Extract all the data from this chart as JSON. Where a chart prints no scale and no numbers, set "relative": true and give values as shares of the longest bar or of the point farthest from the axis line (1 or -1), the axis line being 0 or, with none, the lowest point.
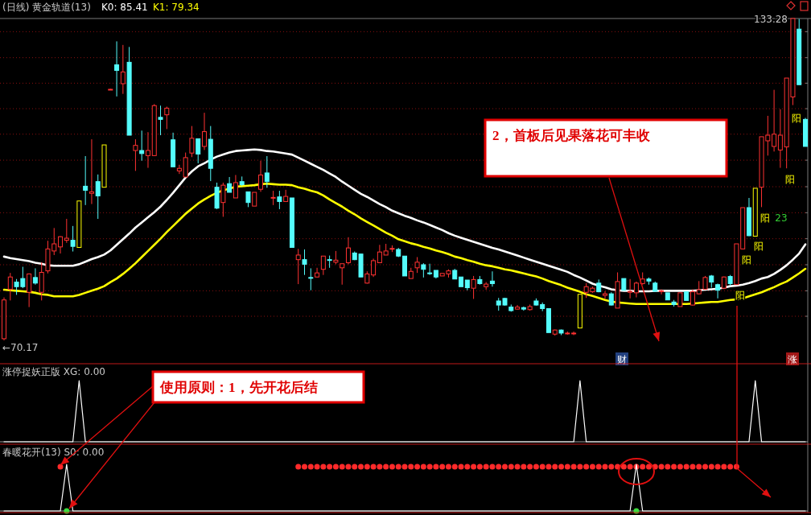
{
  "chart_data": [
    {
      "type": "candlestick",
      "title": "(日线) 黄金轨道(13)",
      "categories": [
        null,
        null,
        null,
        null,
        null,
        null,
        null,
        null,
        null,
        null,
        null,
        null,
        null,
        null,
        null,
        null,
        null,
        null,
        null,
        null,
        null,
        null,
        null,
        null,
        null,
        null,
        null,
        null,
        null,
        null,
        null,
        null,
        null,
        null,
        null,
        null,
        null,
        null,
        null,
        null,
        null,
        null,
        null,
        null,
        null,
        null,
        null,
        null,
        null,
        null,
        null,
        null,
        null,
        null,
        null,
        null,
        null,
        null,
        null,
        null,
        null,
        null,
        null,
        null,
        null,
        null,
        null,
        null,
        null,
        null,
        null,
        null,
        null,
        null,
        null,
        null,
        null,
        null,
        null,
        null,
        null,
        null,
        null,
        null,
        null,
        null,
        null,
        null,
        null,
        null,
        null,
        null,
        null,
        null,
        null,
        null,
        null,
        null,
        null,
        null,
        null,
        null,
        null,
        null,
        null,
        null,
        null,
        null,
        null,
        null,
        null,
        null,
        null,
        null,
        null,
        null,
        null,
        null,
        null,
        null,
        null,
        null,
        null,
        null,
        null,
        null,
        null,
        null,
        null
      ],
      "ohlc": [
        [
          70.5,
          78.6,
          70.17,
          78.1
        ],
        [
          80.2,
          83.4,
          78.0,
          82.6
        ],
        [
          81.6,
          82.2,
          79.1,
          80.7
        ],
        [
          82.3,
          84.6,
          80.4,
          80.7
        ],
        [
          79.6,
          83.3,
          76.7,
          83.2
        ],
        [
          82.5,
          84.3,
          81.1,
          81.4
        ],
        [
          79.6,
          85.5,
          78.0,
          83.5
        ],
        [
          83.8,
          89.7,
          83.3,
          88.1
        ],
        [
          87.7,
          92.2,
          86.9,
          89.1
        ],
        [
          88.5,
          90.6,
          87.2,
          90.5
        ],
        [
          89.8,
          94.0,
          89.3,
          90.2
        ],
        [
          89.8,
          92.6,
          87.6,
          88.6
        ],
        [
          88.4,
          97.5,
          88.4,
          97.5
        ],
        [
          100.4,
          106.3,
          96.7,
          99.6
        ],
        [
          99.0,
          109.6,
          96.9,
          99.3
        ],
        [
          101.3,
          102.7,
          94.0,
          98.5
        ],
        [
          100.2,
          108.5,
          100.2,
          108.5
        ],
        [
          119.3,
          119.5,
          119.3,
          119.4
        ],
        [
          124.2,
          128.8,
          118.0,
          123.1
        ],
        [
          120.5,
          128.1,
          118.5,
          122.8
        ],
        [
          124.7,
          127.7,
          110.4,
          110.4
        ],
        [
          107.4,
          109.6,
          103.4,
          108.4
        ],
        [
          107.4,
          111.3,
          105.4,
          106.8
        ],
        [
          106.4,
          111.0,
          104.0,
          107.4
        ],
        [
          106.4,
          116.5,
          106.3,
          116.2
        ],
        [
          113.9,
          116.2,
          110.4,
          113.5
        ],
        [
          114.4,
          116.0,
          111.6,
          115.7
        ],
        [
          109.5,
          110.9,
          104.2,
          104.2
        ],
        [
          103.4,
          104.6,
          102.8,
          103.9
        ],
        [
          102.2,
          107.0,
          102.2,
          106.0
        ],
        [
          106.9,
          112.2,
          106.1,
          109.8
        ],
        [
          109.7,
          109.7,
          104.9,
          106.7
        ],
        [
          108.2,
          114.8,
          107.5,
          111.1
        ],
        [
          109.6,
          112.2,
          101.4,
          103.9
        ],
        [
          100.2,
          101.1,
          95.9,
          96.1
        ],
        [
          97.2,
          101.1,
          94.4,
          100.6
        ],
        [
          100.9,
          102.2,
          99.2,
          99.2
        ],
        [
          98.1,
          102.6,
          98.1,
          101.1
        ],
        [
          101.3,
          102.3,
          100.4,
          100.7
        ],
        [
          99.3,
          99.3,
          96.3,
          97.2
        ],
        [
          96.5,
          99.2,
          96.5,
          99.2
        ],
        [
          99.8,
          105.4,
          99.3,
          102.6
        ],
        [
          103.0,
          106.3,
          100.1,
          101.3
        ],
        [
          98.1,
          99.5,
          96.7,
          98.2
        ],
        [
          98.3,
          99.5,
          95.9,
          97.4
        ],
        [
          97.4,
          99.7,
          97.4,
          98.4
        ],
        [
          98.1,
          98.1,
          88.4,
          88.4
        ],
        [
          86.0,
          88.1,
          81.2,
          86.9
        ],
        [
          86.0,
          88.0,
          83.0,
          85.1
        ],
        [
          82.5,
          84.3,
          80.0,
          82.4
        ],
        [
          82.6,
          84.4,
          82.5,
          83.4
        ],
        [
          84.1,
          86.7,
          83.0,
          86.7
        ],
        [
          86.0,
          86.8,
          84.4,
          85.9
        ],
        [
          85.5,
          87.7,
          85.1,
          85.9
        ],
        [
          84.4,
          85.2,
          81.1,
          85.2
        ],
        [
          85.4,
          90.4,
          85.1,
          88.3
        ],
        [
          87.3,
          87.6,
          85.9,
          86.0
        ],
        [
          87.1,
          87.1,
          82.6,
          82.6
        ],
        [
          81.4,
          83.7,
          81.3,
          83.2
        ],
        [
          83.0,
          86.2,
          82.6,
          85.8
        ],
        [
          85.4,
          88.9,
          85.4,
          87.5
        ],
        [
          86.9,
          89.1,
          86.9,
          87.7
        ],
        [
          88.1,
          88.8,
          87.5,
          88.2
        ],
        [
          88.0,
          88.3,
          86.5,
          86.7
        ],
        [
          86.7,
          86.7,
          82.8,
          82.8
        ],
        [
          82.3,
          84.4,
          82.3,
          83.7
        ],
        [
          84.4,
          86.5,
          83.4,
          85.5
        ],
        [
          85.0,
          85.3,
          82.5,
          84.1
        ],
        [
          83.4,
          85.2,
          83.0,
          83.3
        ],
        [
          83.9,
          83.9,
          82.3,
          82.6
        ],
        [
          82.8,
          83.3,
          82.8,
          83.3
        ],
        [
          83.2,
          84.1,
          82.5,
          83.8
        ],
        [
          83.9,
          84.2,
          82.2,
          82.2
        ],
        [
          82.6,
          82.6,
          80.7,
          80.7
        ],
        [
          82.0,
          82.0,
          80.0,
          80.5
        ],
        [
          80.4,
          82.8,
          78.3,
          82.1
        ],
        [
          82.1,
          82.8,
          81.1,
          81.3
        ],
        [
          80.7,
          81.6,
          80.1,
          81.2
        ],
        [
          81.8,
          83.7,
          80.7,
          81.3
        ],
        [
          77.9,
          78.5,
          76.0,
          77.1
        ],
        [
          78.4,
          78.5,
          77.0,
          77.1
        ],
        [
          76.7,
          77.2,
          75.8,
          76.0
        ],
        [
          76.3,
          77.1,
          76.2,
          76.7
        ],
        [
          76.6,
          76.8,
          76.0,
          76.3
        ],
        [
          76.2,
          77.2,
          76.0,
          76.8
        ],
        [
          77.9,
          78.4,
          77.0,
          77.1
        ],
        [
          77.2,
          77.6,
          75.9,
          76.4
        ],
        [
          76.4,
          76.4,
          71.7,
          71.7
        ],
        [
          71.4,
          72.3,
          71.1,
          72.2
        ],
        [
          72.2,
          72.3,
          71.2,
          71.6
        ],
        [
          71.5,
          71.9,
          71.3,
          71.6
        ],
        [
          71.5,
          71.9,
          71.2,
          71.6
        ],
        [
          72.6,
          79.2,
          72.6,
          79.2
        ],
        [
          79.6,
          81.4,
          78.5,
          80.7
        ],
        [
          79.7,
          80.7,
          79.5,
          80.4
        ],
        [
          81.4,
          82.1,
          79.6,
          79.7
        ],
        [
          79.0,
          79.8,
          78.3,
          79.3
        ],
        [
          79.3,
          79.6,
          77.0,
          77.1
        ],
        [
          76.5,
          83.5,
          76.5,
          81.7
        ],
        [
          82.3,
          82.3,
          80.0,
          80.0
        ],
        [
          79.6,
          82.2,
          78.4,
          79.8
        ],
        [
          79.5,
          81.7,
          78.6,
          81.4
        ],
        [
          81.3,
          83.5,
          81.1,
          82.2
        ],
        [
          82.2,
          82.5,
          81.1,
          81.8
        ],
        [
          81.4,
          81.7,
          79.7,
          79.8
        ],
        [
          79.8,
          80.2,
          79.2,
          79.9
        ],
        [
          79.5,
          79.5,
          78.1,
          78.1
        ],
        [
          77.7,
          78.1,
          76.8,
          77.2
        ],
        [
          76.8,
          79.5,
          76.8,
          79.5
        ],
        [
          79.7,
          79.7,
          78.0,
          78.0
        ],
        [
          77.1,
          80.2,
          77.0,
          79.7
        ],
        [
          79.3,
          81.8,
          79.2,
          80.1
        ],
        [
          80.2,
          82.8,
          80.1,
          82.5
        ],
        [
          82.8,
          83.0,
          80.5,
          81.6
        ],
        [
          81.1,
          81.3,
          78.4,
          80.0
        ],
        [
          80.4,
          82.7,
          80.2,
          82.6
        ],
        [
          82.7,
          83.0,
          80.9,
          81.3
        ],
        [
          81.1,
          89.1,
          81.1,
          89.1
        ],
        [
          88.1,
          96.2,
          88.0,
          96.2
        ],
        [
          96.2,
          98.1,
          90.6,
          90.7
        ],
        [
          90.6,
          100.0,
          90.6,
          100.0
        ],
        [
          100.2,
          110.1,
          96.3,
          110.1
        ],
        [
          109.3,
          114.2,
          106.4,
          110.4
        ],
        [
          108.2,
          119.3,
          107.2,
          110.6
        ],
        [
          107.5,
          115.5,
          104.0,
          110.4
        ],
        [
          108.1,
          121.6,
          103.9,
          121.6
        ],
        [
          117.9,
          133.28,
          116.3,
          133.28
        ],
        [
          131.2,
          133.2,
          120.3,
          120.3
        ],
        [
          113.5,
          113.8,
          108.2,
          108.2
        ]
      ],
      "colors": [
        "#ff3232",
        "#ff3232",
        "#54fcfc",
        "#54fcfc",
        "#ff3232",
        "#54fcfc",
        "#ff3232",
        "#ff3232",
        "#ff3232",
        "#ff3232",
        "#ff3232",
        "#54fcfc",
        "#ffff00",
        "#54fcfc",
        "#ff3232",
        "#54fcfc",
        "#ffff00",
        "#ff3232",
        "#54fcfc",
        "#ff3232",
        "#54fcfc",
        "#ff3232",
        "#54fcfc",
        "#ff3232",
        "#ff3232",
        "#54fcfc",
        "#ff3232",
        "#54fcfc",
        "#ff3232",
        "#ff3232",
        "#ff3232",
        "#54fcfc",
        "#ff3232",
        "#54fcfc",
        "#54fcfc",
        "#ff3232",
        "#54fcfc",
        "#ff3232",
        "#54fcfc",
        "#54fcfc",
        "#ff3232",
        "#ff3232",
        "#54fcfc",
        "#ff3232",
        "#54fcfc",
        "#ff3232",
        "#54fcfc",
        "#ff3232",
        "#54fcfc",
        "#54fcfc",
        "#ff3232",
        "#ff3232",
        "#54fcfc",
        "#ff3232",
        "#ff3232",
        "#ff3232",
        "#54fcfc",
        "#54fcfc",
        "#ff3232",
        "#ff3232",
        "#ff3232",
        "#ff3232",
        "#ff3232",
        "#54fcfc",
        "#54fcfc",
        "#ff3232",
        "#ff3232",
        "#54fcfc",
        "#54fcfc",
        "#54fcfc",
        "#ff3232",
        "#ff3232",
        "#54fcfc",
        "#54fcfc",
        "#54fcfc",
        "#ff3232",
        "#54fcfc",
        "#ff3232",
        "#54fcfc",
        "#54fcfc",
        "#54fcfc",
        "#54fcfc",
        "#ff3232",
        "#54fcfc",
        "#ff3232",
        "#54fcfc",
        "#54fcfc",
        "#54fcfc",
        "#ff3232",
        "#54fcfc",
        "#ff3232",
        "#ff3232",
        "#ffff00",
        "#ff3232",
        "#ff3232",
        "#54fcfc",
        "#ff3232",
        "#54fcfc",
        "#ff3232",
        "#54fcfc",
        "#ff3232",
        "#ff3232",
        "#ff3232",
        "#54fcfc",
        "#54fcfc",
        "#ff3232",
        "#54fcfc",
        "#54fcfc",
        "#ff3232",
        "#54fcfc",
        "#ff3232",
        "#ff3232",
        "#ff3232",
        "#54fcfc",
        "#54fcfc",
        "#ff3232",
        "#54fcfc",
        "#ff3232",
        "#ff3232",
        "#54fcfc",
        "#ffff00",
        "#ff3232",
        "#ff3232",
        "#ff3232",
        "#ff3232",
        "#ff3232",
        "#ff3232",
        "#54fcfc",
        "#54fcfc"
      ],
      "series": [
        {
          "type": "line",
          "color": "#ffffff",
          "values": [
            86.6,
            86.3,
            86.1,
            85.9,
            85.7,
            85.4,
            85.2,
            84.9,
            84.8,
            84.8,
            84.8,
            84.8,
            85.1,
            85.6,
            86.1,
            86.5,
            87.0,
            87.8,
            88.9,
            90.0,
            91.1,
            92.3,
            93.3,
            94.3,
            95.3,
            96.4,
            97.7,
            99.1,
            100.6,
            102.1,
            103.3,
            104.3,
            104.9,
            105.6,
            106.2,
            106.6,
            107.0,
            107.3,
            107.4,
            107.5,
            107.6,
            107.5,
            107.3,
            107.2,
            107.0,
            106.8,
            106.6,
            106.0,
            105.4,
            104.8,
            104.2,
            103.6,
            102.9,
            102.2,
            101.3,
            100.5,
            99.7,
            98.9,
            98.3,
            97.6,
            96.9,
            96.3,
            95.6,
            95.1,
            94.6,
            94.2,
            93.7,
            93.3,
            92.8,
            92.3,
            91.8,
            91.2,
            90.7,
            90.3,
            89.9,
            89.5,
            89.1,
            88.7,
            88.3,
            88.0,
            87.6,
            87.2,
            86.8,
            86.4,
            86.0,
            85.6,
            85.2,
            84.8,
            84.4,
            84.0,
            83.6,
            83.0,
            82.5,
            81.9,
            81.3,
            80.9,
            80.6,
            80.2,
            80.0,
            79.9,
            79.9,
            79.8,
            79.8,
            79.8,
            79.9,
            79.9,
            79.9,
            79.9,
            79.9,
            79.9,
            79.9,
            80.0,
            80.1,
            80.2,
            80.3,
            80.5,
            80.8,
            80.9,
            81.1,
            81.4,
            81.8,
            82.3,
            82.6,
            83.2,
            84.0,
            84.9,
            86.0,
            87.2,
            89.0
          ]
        },
        {
          "type": "line",
          "color": "#ffff00",
          "values": [
            80.1,
            80.0,
            79.9,
            79.8,
            79.7,
            79.5,
            79.2,
            79.1,
            78.8,
            78.8,
            78.8,
            78.8,
            79.1,
            79.5,
            79.9,
            80.3,
            80.8,
            81.6,
            82.3,
            83.2,
            84.2,
            85.3,
            86.5,
            87.7,
            88.9,
            90.1,
            91.4,
            92.6,
            93.8,
            95.0,
            96.0,
            97.0,
            97.8,
            98.5,
            99.1,
            99.6,
            99.9,
            100.3,
            100.4,
            100.5,
            100.6,
            100.8,
            100.9,
            100.8,
            100.7,
            100.7,
            100.6,
            100.2,
            99.9,
            99.5,
            99.2,
            98.6,
            97.8,
            97.1,
            96.4,
            95.6,
            94.9,
            94.1,
            93.4,
            92.7,
            92.0,
            91.3,
            90.7,
            90.0,
            89.6,
            89.2,
            88.9,
            88.5,
            88.2,
            87.8,
            87.5,
            87.1,
            86.6,
            86.3,
            85.9,
            85.6,
            85.2,
            84.9,
            84.7,
            84.4,
            84.1,
            83.9,
            83.6,
            83.3,
            83.0,
            82.7,
            82.3,
            81.8,
            81.4,
            81.0,
            80.5,
            80.1,
            79.7,
            79.2,
            78.9,
            78.5,
            78.1,
            77.8,
            77.6,
            77.5,
            77.4,
            77.3,
            77.3,
            77.3,
            77.3,
            77.3,
            77.3,
            77.3,
            77.3,
            77.3,
            77.4,
            77.5,
            77.6,
            77.7,
            77.7,
            77.9,
            78.1,
            78.2,
            78.4,
            78.8,
            79.2,
            79.6,
            80.1,
            80.6,
            81.2,
            81.7,
            82.5,
            83.3,
            84.2
          ]
        }
      ],
      "yticks": [
        {
          "value": 130.7,
          "label": null
        },
        {
          "value": 125.6,
          "label": null
        },
        {
          "value": 120.6,
          "label": null
        },
        {
          "value": 115.6,
          "label": null
        },
        {
          "value": 110.6,
          "label": null
        },
        {
          "value": 105.5,
          "label": null
        },
        {
          "value": 100.3,
          "label": null
        },
        {
          "value": 95.2,
          "label": null
        },
        {
          "value": 90.1,
          "label": null
        },
        {
          "value": 85.0,
          "label": null
        },
        {
          "value": 79.9,
          "label": null
        },
        {
          "value": 74.9,
          "label": null
        }
      ],
      "grid": "y",
      "annotations": [
        "K0: 85.41",
        "K1: 79.34",
        "133.28",
        "←70.17",
        "2，首板后见果落花可丰收",
        "阳",
        "阳",
        "阳",
        "阳",
        "阳",
        "阳",
        "23",
        "财",
        "涨"
      ]
    },
    {
      "type": "line",
      "title": "涨停捉妖正版 XG: 0.00",
      "relative": true,
      "categories": [
        null,
        null,
        null,
        null,
        null,
        null,
        null,
        null,
        null,
        null,
        null,
        null,
        null,
        null,
        null,
        null,
        null,
        null,
        null,
        null,
        null,
        null,
        null,
        null,
        null,
        null,
        null,
        null,
        null,
        null,
        null,
        null,
        null,
        null,
        null,
        null,
        null,
        null,
        null,
        null,
        null,
        null,
        null,
        null,
        null,
        null,
        null,
        null,
        null,
        null,
        null,
        null,
        null,
        null,
        null,
        null,
        null,
        null,
        null,
        null,
        null,
        null,
        null,
        null,
        null,
        null,
        null,
        null,
        null,
        null,
        null,
        null,
        null,
        null,
        null,
        null,
        null,
        null,
        null,
        null,
        null,
        null,
        null,
        null,
        null,
        null,
        null,
        null,
        null,
        null,
        null,
        null,
        null,
        null,
        null,
        null,
        null,
        null,
        null,
        null,
        null,
        null,
        null,
        null,
        null,
        null,
        null,
        null,
        null,
        null,
        null,
        null,
        null,
        null,
        null,
        null,
        null,
        null,
        null,
        null,
        null,
        null,
        null,
        null,
        null,
        null,
        null,
        null,
        null
      ],
      "series": [
        {
          "type": "line",
          "color": "#ffffff",
          "values": [
            0,
            0,
            0,
            0,
            0,
            0,
            0,
            0,
            0,
            0,
            0,
            0,
            1,
            0,
            0,
            0,
            0,
            0,
            0,
            0,
            0,
            0,
            0,
            0,
            0,
            0,
            0,
            0,
            0,
            0,
            0,
            0,
            0,
            0,
            0,
            0,
            0,
            0,
            0,
            0,
            0,
            0,
            0,
            0,
            0,
            0,
            0,
            0,
            0,
            0,
            0,
            0,
            0,
            0,
            0,
            0,
            0,
            0,
            0,
            0,
            0,
            0,
            0,
            0,
            0,
            0,
            0,
            0,
            0,
            0,
            0,
            0,
            0,
            0,
            0,
            0,
            0,
            0,
            0,
            0,
            0,
            0,
            0,
            0,
            0,
            0,
            0,
            0,
            0,
            0,
            0,
            0,
            1,
            0,
            0,
            0,
            0,
            0,
            0,
            0,
            0,
            0,
            0,
            0,
            0,
            0,
            0,
            0,
            0,
            0,
            0,
            0,
            0,
            0,
            0,
            0,
            0,
            0,
            0,
            0,
            1,
            0,
            0,
            0,
            0,
            0,
            0,
            0,
            0
          ]
        }
      ],
      "annotations": [
        "使用原则：1，先开花后结"
      ]
    },
    {
      "type": "line",
      "title": "春暖花开(13) S0: 0.00",
      "relative": true,
      "categories": [
        null,
        null,
        null,
        null,
        null,
        null,
        null,
        null,
        null,
        null,
        null,
        null,
        null,
        null,
        null,
        null,
        null,
        null,
        null,
        null,
        null,
        null,
        null,
        null,
        null,
        null,
        null,
        null,
        null,
        null,
        null,
        null,
        null,
        null,
        null,
        null,
        null,
        null,
        null,
        null,
        null,
        null,
        null,
        null,
        null,
        null,
        null,
        null,
        null,
        null,
        null,
        null,
        null,
        null,
        null,
        null,
        null,
        null,
        null,
        null,
        null,
        null,
        null,
        null,
        null,
        null,
        null,
        null,
        null,
        null,
        null,
        null,
        null,
        null,
        null,
        null,
        null,
        null,
        null,
        null,
        null,
        null,
        null,
        null,
        null,
        null,
        null,
        null,
        null,
        null,
        null,
        null,
        null,
        null,
        null,
        null,
        null,
        null,
        null,
        null,
        null,
        null,
        null,
        null,
        null,
        null,
        null,
        null,
        null,
        null,
        null,
        null,
        null,
        null,
        null,
        null,
        null,
        null,
        null,
        null,
        null,
        null,
        null,
        null,
        null,
        null,
        null,
        null,
        null
      ],
      "series": [
        {
          "type": "line",
          "color": "#ffffff",
          "values": [
            0,
            0,
            0,
            0,
            0,
            0,
            0,
            0,
            0,
            0,
            1,
            0,
            0,
            0,
            0,
            0,
            0,
            0,
            0,
            0,
            0,
            0,
            0,
            0,
            0,
            0,
            0,
            0,
            0,
            0,
            0,
            0,
            0,
            0,
            0,
            0,
            0,
            0,
            0,
            0,
            0,
            0,
            0,
            0,
            0,
            0,
            0,
            0,
            0,
            0,
            0,
            0,
            0,
            0,
            0,
            0,
            0,
            0,
            0,
            0,
            0,
            0,
            0,
            0,
            0,
            0,
            0,
            0,
            0,
            0,
            0,
            0,
            0,
            0,
            0,
            0,
            0,
            0,
            0,
            0,
            0,
            0,
            0,
            0,
            0,
            0,
            0,
            0,
            0,
            0,
            0,
            0,
            0,
            0,
            0,
            0,
            0,
            0,
            0,
            0,
            0,
            1,
            0,
            0,
            0,
            0,
            0,
            0,
            0,
            0,
            0,
            0,
            0,
            0,
            0,
            0,
            0,
            0,
            0,
            0,
            0,
            0,
            0,
            0,
            0,
            0,
            0,
            0,
            0
          ]
        },
        {
          "type": "scatter",
          "color": "#ff2a2a",
          "marker": "circle",
          "values": [
            null,
            null,
            null,
            null,
            null,
            null,
            null,
            null,
            null,
            0.95,
            null,
            null,
            null,
            null,
            null,
            null,
            null,
            null,
            null,
            null,
            null,
            null,
            null,
            null,
            null,
            null,
            null,
            null,
            null,
            null,
            null,
            null,
            null,
            null,
            null,
            null,
            null,
            null,
            null,
            null,
            null,
            null,
            null,
            null,
            null,
            null,
            null,
            0.95,
            0.95,
            0.95,
            0.95,
            0.95,
            0.95,
            0.95,
            0.95,
            0.95,
            0.95,
            0.95,
            0.95,
            0.95,
            0.95,
            0.95,
            0.95,
            0.95,
            0.95,
            0.95,
            0.95,
            0.95,
            0.95,
            0.95,
            0.95,
            0.95,
            0.95,
            0.95,
            0.95,
            0.95,
            0.95,
            0.95,
            0.95,
            0.95,
            0.95,
            0.95,
            0.95,
            0.95,
            0.95,
            0.95,
            0.95,
            0.95,
            0.95,
            0.95,
            0.95,
            0.95,
            0.95,
            0.95,
            0.95,
            0.95,
            0.95,
            0.95,
            0.95,
            0.95,
            0.95,
            0.95,
            0.95,
            0.95,
            0.95,
            0.95,
            0.95,
            0.95,
            0.95,
            0.95,
            0.95,
            0.95,
            0.95,
            0.95,
            0.95,
            0.95,
            0.95,
            0.95,
            null,
            null,
            null,
            null,
            null,
            null,
            null,
            null,
            null,
            null,
            null
          ]
        },
        {
          "type": "scatter",
          "color": "#3ddc3d",
          "marker": "circle",
          "values": [
            null,
            null,
            null,
            null,
            null,
            null,
            null,
            null,
            null,
            null,
            0,
            null,
            null,
            null,
            null,
            null,
            null,
            null,
            null,
            null,
            null,
            null,
            null,
            null,
            null,
            null,
            null,
            null,
            null,
            null,
            null,
            null,
            null,
            null,
            null,
            null,
            null,
            null,
            null,
            null,
            null,
            null,
            null,
            null,
            null,
            null,
            null,
            null,
            null,
            null,
            null,
            null,
            null,
            null,
            null,
            null,
            null,
            null,
            null,
            null,
            null,
            null,
            null,
            null,
            null,
            null,
            null,
            null,
            null,
            null,
            null,
            null,
            null,
            null,
            null,
            null,
            null,
            null,
            null,
            null,
            null,
            null,
            null,
            null,
            null,
            null,
            null,
            null,
            null,
            null,
            null,
            null,
            null,
            null,
            null,
            null,
            null,
            null,
            null,
            null,
            null,
            0,
            null,
            null,
            null,
            null,
            null,
            null,
            null,
            null,
            null,
            null,
            null,
            null,
            null,
            null,
            null,
            null,
            null,
            null,
            null,
            null,
            null,
            null,
            null,
            null,
            null,
            null,
            null
          ]
        }
      ]
    }
  ]
}
